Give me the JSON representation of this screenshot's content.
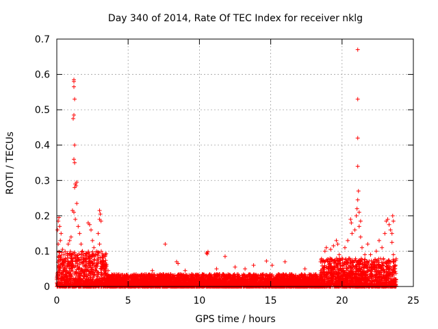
{
  "chart_data": {
    "type": "scatter",
    "title": "Day 340 of 2014, Rate Of TEC Index for receiver nklg",
    "xlabel": "GPS time / hours",
    "ylabel": "ROTI / TECUs",
    "xlim": [
      0,
      25
    ],
    "ylim": [
      0,
      0.7
    ],
    "x_ticks": [
      0,
      5,
      10,
      15,
      20,
      25
    ],
    "y_ticks": [
      0,
      0.1,
      0.2,
      0.3,
      0.4,
      0.5,
      0.6,
      0.7
    ],
    "x_tick_labels": [
      "0",
      "5",
      "10",
      "15",
      "20",
      "25"
    ],
    "y_tick_labels": [
      "0",
      "0.1",
      "0.2",
      "0.3",
      "0.4",
      "0.5",
      "0.6",
      "0.7"
    ],
    "grid": true,
    "marker": "+",
    "series_color": "#ff0000",
    "series": [
      {
        "name": "ROTI",
        "points": [
          [
            1.2,
            0.58
          ],
          [
            1.2,
            0.585
          ],
          [
            1.2,
            0.565
          ],
          [
            1.25,
            0.53
          ],
          [
            1.2,
            0.485
          ],
          [
            1.15,
            0.475
          ],
          [
            1.25,
            0.4
          ],
          [
            1.2,
            0.36
          ],
          [
            1.25,
            0.35
          ],
          [
            1.4,
            0.295
          ],
          [
            1.3,
            0.29
          ],
          [
            1.35,
            0.285
          ],
          [
            1.25,
            0.28
          ],
          [
            1.4,
            0.235
          ],
          [
            1.2,
            0.21
          ],
          [
            1.1,
            0.215
          ],
          [
            1.3,
            0.19
          ],
          [
            0.15,
            0.195
          ],
          [
            0.1,
            0.185
          ],
          [
            0.2,
            0.17
          ],
          [
            0.05,
            0.16
          ],
          [
            0.3,
            0.15
          ],
          [
            0.25,
            0.13
          ],
          [
            0.1,
            0.12
          ],
          [
            0.4,
            0.105
          ],
          [
            0.5,
            0.09
          ],
          [
            0.6,
            0.08
          ],
          [
            0.8,
            0.12
          ],
          [
            0.9,
            0.13
          ],
          [
            1.0,
            0.14
          ],
          [
            1.5,
            0.17
          ],
          [
            1.6,
            0.15
          ],
          [
            1.7,
            0.12
          ],
          [
            1.8,
            0.1
          ],
          [
            2.2,
            0.18
          ],
          [
            2.3,
            0.175
          ],
          [
            2.4,
            0.16
          ],
          [
            2.5,
            0.13
          ],
          [
            2.6,
            0.11
          ],
          [
            2.7,
            0.09
          ],
          [
            3.0,
            0.215
          ],
          [
            3.05,
            0.205
          ],
          [
            3.0,
            0.19
          ],
          [
            3.1,
            0.185
          ],
          [
            2.9,
            0.15
          ],
          [
            3.0,
            0.12
          ],
          [
            3.2,
            0.08
          ],
          [
            3.4,
            0.06
          ],
          [
            3.6,
            0.045
          ],
          [
            2.0,
            0.07
          ],
          [
            1.9,
            0.06
          ],
          [
            0.7,
            0.055
          ],
          [
            0.35,
            0.065
          ],
          [
            7.6,
            0.12
          ],
          [
            10.5,
            0.095
          ],
          [
            10.6,
            0.098
          ],
          [
            10.55,
            0.092
          ],
          [
            11.8,
            0.085
          ],
          [
            8.4,
            0.07
          ],
          [
            8.5,
            0.065
          ],
          [
            14.7,
            0.072
          ],
          [
            16.0,
            0.07
          ],
          [
            15.1,
            0.06
          ],
          [
            12.5,
            0.055
          ],
          [
            13.2,
            0.05
          ],
          [
            6.7,
            0.045
          ],
          [
            9.0,
            0.045
          ],
          [
            11.2,
            0.05
          ],
          [
            13.8,
            0.06
          ],
          [
            17.4,
            0.05
          ],
          [
            18.5,
            0.07
          ],
          [
            18.8,
            0.1
          ],
          [
            18.9,
            0.11
          ],
          [
            19.2,
            0.105
          ],
          [
            19.4,
            0.115
          ],
          [
            19.6,
            0.13
          ],
          [
            19.7,
            0.12
          ],
          [
            19.8,
            0.09
          ],
          [
            20.0,
            0.08
          ],
          [
            20.2,
            0.11
          ],
          [
            20.4,
            0.13
          ],
          [
            20.6,
            0.19
          ],
          [
            20.65,
            0.18
          ],
          [
            20.7,
            0.15
          ],
          [
            20.9,
            0.16
          ],
          [
            21.0,
            0.2
          ],
          [
            21.05,
            0.22
          ],
          [
            21.1,
            0.245
          ],
          [
            21.15,
            0.27
          ],
          [
            21.1,
            0.34
          ],
          [
            21.1,
            0.42
          ],
          [
            21.1,
            0.53
          ],
          [
            21.1,
            0.67
          ],
          [
            21.2,
            0.21
          ],
          [
            21.3,
            0.185
          ],
          [
            21.2,
            0.17
          ],
          [
            21.3,
            0.14
          ],
          [
            21.4,
            0.11
          ],
          [
            21.6,
            0.09
          ],
          [
            21.8,
            0.12
          ],
          [
            22.0,
            0.09
          ],
          [
            22.2,
            0.07
          ],
          [
            22.4,
            0.1
          ],
          [
            22.6,
            0.13
          ],
          [
            22.8,
            0.11
          ],
          [
            23.0,
            0.15
          ],
          [
            23.1,
            0.185
          ],
          [
            23.2,
            0.19
          ],
          [
            23.3,
            0.175
          ],
          [
            23.4,
            0.16
          ],
          [
            23.5,
            0.15
          ],
          [
            23.55,
            0.2
          ],
          [
            23.6,
            0.185
          ],
          [
            23.5,
            0.125
          ],
          [
            23.6,
            0.09
          ],
          [
            23.7,
            0.05
          ],
          [
            22.9,
            0.06
          ],
          [
            23.2,
            0.055
          ]
        ]
      }
    ],
    "baseline_band": {
      "segments": [
        {
          "x_from": 0.0,
          "x_to": 3.5,
          "y_min": 0.0,
          "y_max": 0.1
        },
        {
          "x_from": 3.5,
          "x_to": 18.5,
          "y_min": 0.0,
          "y_max": 0.035
        },
        {
          "x_from": 18.5,
          "x_to": 23.8,
          "y_min": 0.0,
          "y_max": 0.08
        }
      ]
    }
  }
}
